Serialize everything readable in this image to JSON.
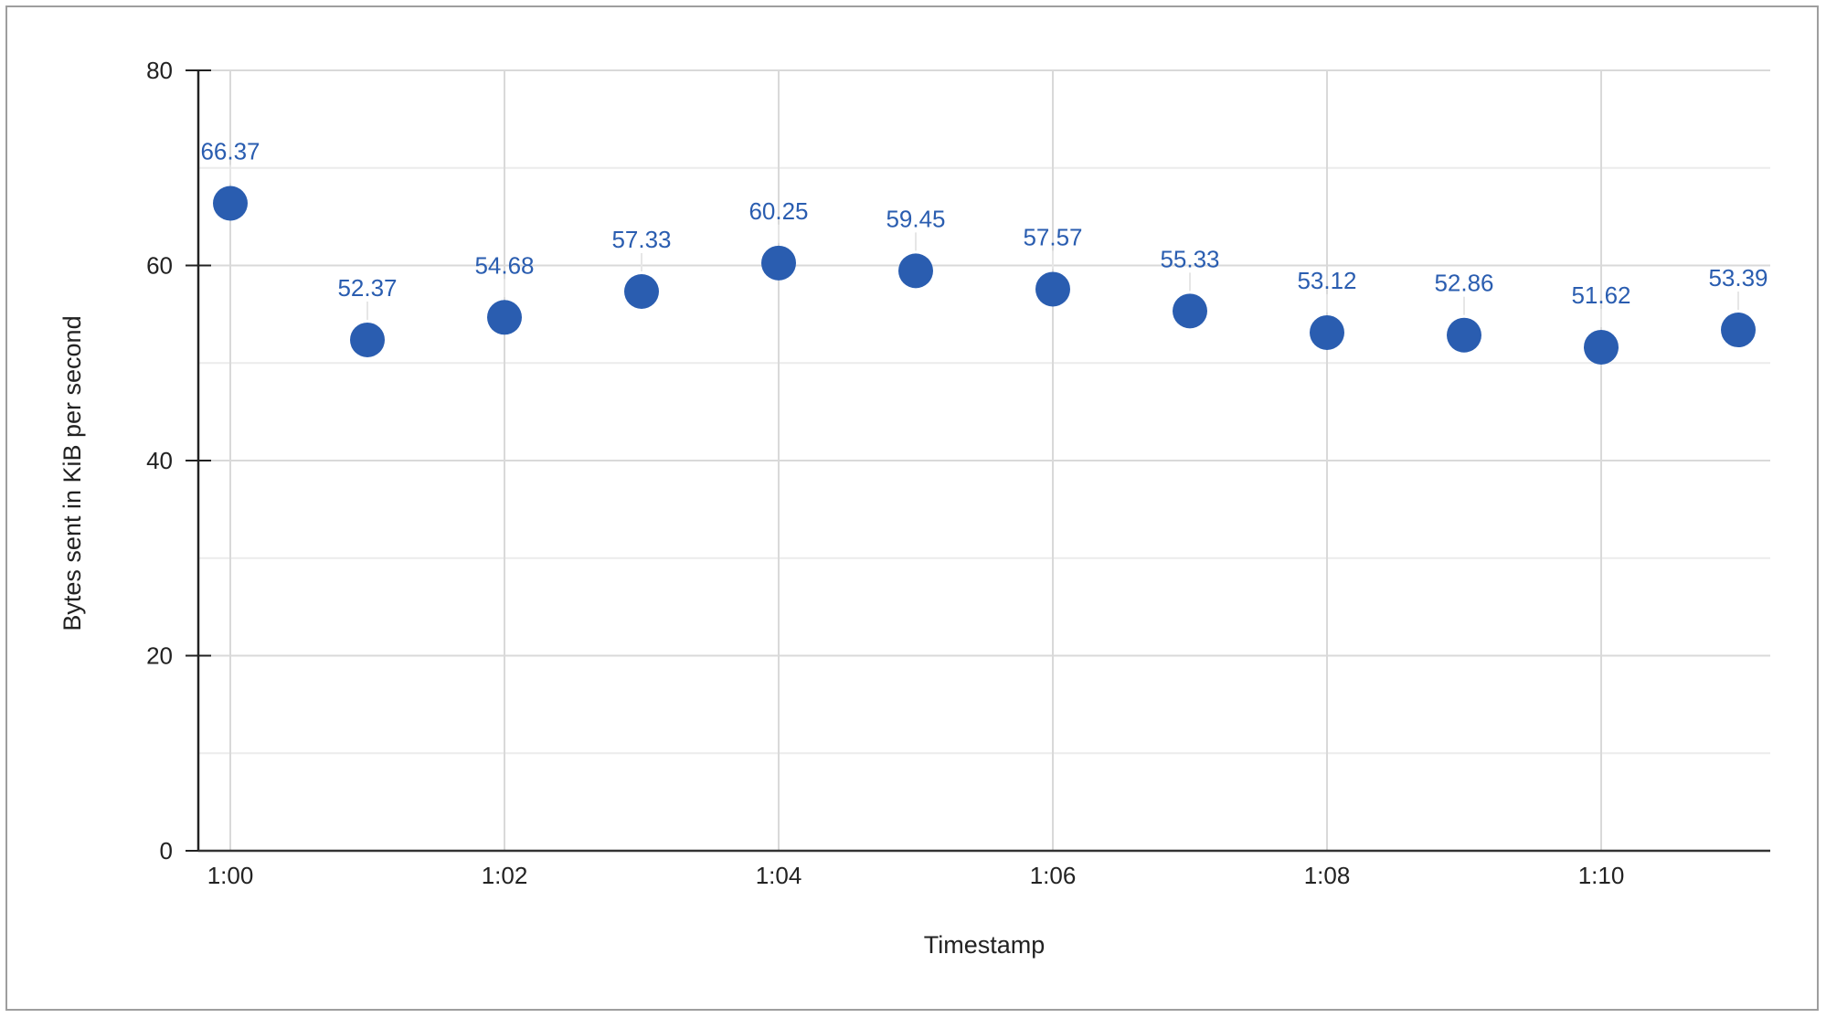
{
  "chart_data": {
    "type": "scatter",
    "title": "",
    "xlabel": "Timestamp",
    "ylabel": "Bytes sent in KiB per second",
    "x": [
      "1:00",
      "1:01",
      "1:02",
      "1:03",
      "1:04",
      "1:05",
      "1:06",
      "1:07",
      "1:08",
      "1:09",
      "1:10",
      "1:11"
    ],
    "values": [
      66.37,
      52.37,
      54.68,
      57.33,
      60.25,
      59.45,
      57.57,
      55.33,
      53.12,
      52.86,
      51.62,
      53.39
    ],
    "data_labels": [
      "66.37",
      "52.37",
      "54.68",
      "57.33",
      "60.25",
      "59.45",
      "57.57",
      "55.33",
      "53.12",
      "52.86",
      "51.62",
      "53.39"
    ],
    "x_ticks": [
      "1:00",
      "1:02",
      "1:04",
      "1:06",
      "1:08",
      "1:10"
    ],
    "y_ticks": [
      "0",
      "20",
      "40",
      "60",
      "80"
    ],
    "ylim": [
      0,
      80
    ],
    "grid": true,
    "legend": "none",
    "colors": {
      "points": "#2a5db0",
      "grid": "#d9d9d9",
      "axis": "#222222"
    }
  }
}
